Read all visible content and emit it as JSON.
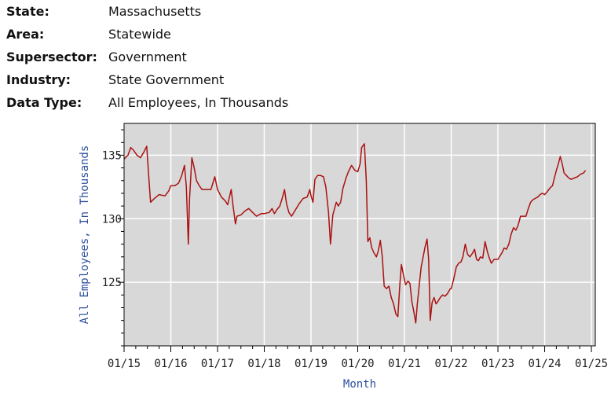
{
  "meta": {
    "state_label": "State:",
    "state": "Massachusetts",
    "area_label": "Area:",
    "area": "Statewide",
    "supersector_label": "Supersector:",
    "supersector": "Government",
    "industry_label": "Industry:",
    "industry": "State Government",
    "datatype_label": "Data Type:",
    "datatype": "All Employees, In Thousands"
  },
  "colors": {
    "plot_bg": "#d8d8d8",
    "grid": "#ffffff",
    "line": "#aa1111",
    "axis_title": "#2e4f9e"
  },
  "chart_data": {
    "type": "line",
    "title": "",
    "xlabel": "Month",
    "ylabel": "All Employees, In Thousands",
    "ylim": [
      120,
      137.5
    ],
    "xlim": [
      0,
      121
    ],
    "yticks": [
      125,
      130,
      135
    ],
    "xticks": [
      0,
      12,
      24,
      36,
      48,
      60,
      72,
      84,
      96,
      108,
      120
    ],
    "xtick_labels": [
      "01/15",
      "01/16",
      "01/17",
      "01/18",
      "01/19",
      "01/20",
      "01/21",
      "01/22",
      "01/23",
      "01/24",
      "01/25"
    ],
    "grid": true,
    "series": [
      {
        "name": "State Government",
        "points": [
          [
            0,
            134.7
          ],
          [
            1,
            135
          ],
          [
            1.7,
            135.6
          ],
          [
            2.4,
            135.4
          ],
          [
            3.3,
            135
          ],
          [
            4.2,
            134.8
          ],
          [
            5,
            135.2
          ],
          [
            5.8,
            135.7
          ],
          [
            6.3,
            133.5
          ],
          [
            6.8,
            131.3
          ],
          [
            7.8,
            131.6
          ],
          [
            9,
            131.9
          ],
          [
            10.5,
            131.8
          ],
          [
            11.5,
            132.2
          ],
          [
            12,
            132.6
          ],
          [
            13,
            132.6
          ],
          [
            14,
            132.8
          ],
          [
            14.8,
            133.4
          ],
          [
            15.5,
            134.2
          ],
          [
            16,
            132.5
          ],
          [
            16.5,
            128
          ],
          [
            16.8,
            131.5
          ],
          [
            17.4,
            134.8
          ],
          [
            18,
            134
          ],
          [
            18.6,
            133
          ],
          [
            19.3,
            132.6
          ],
          [
            20,
            132.3
          ],
          [
            21,
            132.3
          ],
          [
            22.3,
            132.3
          ],
          [
            23.3,
            133.3
          ],
          [
            24,
            132.3
          ],
          [
            25,
            131.7
          ],
          [
            26,
            131.4
          ],
          [
            26.6,
            131.1
          ],
          [
            27.5,
            132.3
          ],
          [
            28,
            131
          ],
          [
            28.6,
            129.6
          ],
          [
            29,
            130.2
          ],
          [
            30,
            130.3
          ],
          [
            31,
            130.6
          ],
          [
            32,
            130.8
          ],
          [
            33,
            130.5
          ],
          [
            34,
            130.2
          ],
          [
            35.2,
            130.4
          ],
          [
            36,
            130.4
          ],
          [
            37.3,
            130.5
          ],
          [
            38,
            130.8
          ],
          [
            38.6,
            130.4
          ],
          [
            39.2,
            130.7
          ],
          [
            40,
            131
          ],
          [
            40.6,
            131.6
          ],
          [
            41.2,
            132.3
          ],
          [
            41.7,
            131.2
          ],
          [
            42.3,
            130.5
          ],
          [
            43,
            130.2
          ],
          [
            44,
            130.7
          ],
          [
            45,
            131.2
          ],
          [
            46,
            131.6
          ],
          [
            47,
            131.7
          ],
          [
            47.7,
            132.3
          ],
          [
            48,
            131.8
          ],
          [
            48.5,
            131.3
          ],
          [
            49,
            133.1
          ],
          [
            49.7,
            133.4
          ],
          [
            50.5,
            133.4
          ],
          [
            51.2,
            133.3
          ],
          [
            51.8,
            132.5
          ],
          [
            52.5,
            130.5
          ],
          [
            53,
            128
          ],
          [
            53.6,
            130.3
          ],
          [
            54.5,
            131.3
          ],
          [
            55,
            131
          ],
          [
            55.6,
            131.3
          ],
          [
            56.2,
            132.4
          ],
          [
            57,
            133.2
          ],
          [
            57.6,
            133.7
          ],
          [
            58.4,
            134.2
          ],
          [
            59.3,
            133.8
          ],
          [
            60,
            133.7
          ],
          [
            60.6,
            134.3
          ],
          [
            61,
            135.6
          ],
          [
            61.7,
            135.9
          ],
          [
            62.2,
            133
          ],
          [
            62.6,
            128.2
          ],
          [
            63.1,
            128.5
          ],
          [
            63.6,
            127.7
          ],
          [
            64.2,
            127.3
          ],
          [
            64.8,
            127
          ],
          [
            65.3,
            127.5
          ],
          [
            65.8,
            128.3
          ],
          [
            66.3,
            127
          ],
          [
            66.8,
            124.7
          ],
          [
            67.4,
            124.5
          ],
          [
            68,
            124.7
          ],
          [
            68.6,
            123.8
          ],
          [
            69.2,
            123.3
          ],
          [
            69.8,
            122.5
          ],
          [
            70.3,
            122.3
          ],
          [
            70.8,
            124.8
          ],
          [
            71.2,
            126.4
          ],
          [
            71.8,
            125.5
          ],
          [
            72.3,
            124.8
          ],
          [
            72.9,
            125.1
          ],
          [
            73.4,
            124.9
          ],
          [
            73.9,
            123.5
          ],
          [
            74.4,
            122.7
          ],
          [
            74.9,
            121.8
          ],
          [
            75.3,
            123.3
          ],
          [
            75.8,
            124.8
          ],
          [
            76.3,
            126.2
          ],
          [
            76.8,
            127
          ],
          [
            77.3,
            127.8
          ],
          [
            77.8,
            128.4
          ],
          [
            78.2,
            126.8
          ],
          [
            78.6,
            122
          ],
          [
            79.1,
            123.4
          ],
          [
            79.6,
            123.8
          ],
          [
            80.1,
            123.3
          ],
          [
            80.6,
            123.5
          ],
          [
            81.2,
            123.8
          ],
          [
            81.8,
            124
          ],
          [
            82.4,
            123.9
          ],
          [
            83,
            124.1
          ],
          [
            83.8,
            124.5
          ],
          [
            84,
            124.5
          ],
          [
            84.6,
            125.2
          ],
          [
            85.3,
            126.2
          ],
          [
            85.9,
            126.5
          ],
          [
            86.5,
            126.6
          ],
          [
            87,
            127
          ],
          [
            87.6,
            128
          ],
          [
            88.2,
            127.2
          ],
          [
            88.8,
            127
          ],
          [
            89.5,
            127.3
          ],
          [
            90,
            127.6
          ],
          [
            90.5,
            126.8
          ],
          [
            91,
            126.7
          ],
          [
            91.5,
            127
          ],
          [
            92.1,
            126.9
          ],
          [
            92.7,
            128.2
          ],
          [
            93.3,
            127.4
          ],
          [
            93.8,
            126.9
          ],
          [
            94.3,
            126.5
          ],
          [
            95,
            126.8
          ],
          [
            96,
            126.8
          ],
          [
            97,
            127.3
          ],
          [
            97.6,
            127.7
          ],
          [
            98.2,
            127.6
          ],
          [
            98.8,
            128
          ],
          [
            99.4,
            128.8
          ],
          [
            100,
            129.3
          ],
          [
            100.6,
            129.1
          ],
          [
            101.2,
            129.5
          ],
          [
            101.8,
            130.2
          ],
          [
            102.5,
            130.2
          ],
          [
            103.2,
            130.2
          ],
          [
            103.8,
            130.8
          ],
          [
            104.4,
            131.3
          ],
          [
            105,
            131.5
          ],
          [
            105.6,
            131.6
          ],
          [
            106.2,
            131.7
          ],
          [
            106.8,
            131.9
          ],
          [
            107.4,
            132
          ],
          [
            108,
            131.9
          ],
          [
            108.6,
            132.1
          ],
          [
            109.3,
            132.4
          ],
          [
            110,
            132.6
          ],
          [
            110.5,
            133.2
          ],
          [
            111,
            133.8
          ],
          [
            111.5,
            134.3
          ],
          [
            112,
            134.9
          ],
          [
            112.5,
            134.3
          ],
          [
            113,
            133.6
          ],
          [
            113.6,
            133.4
          ],
          [
            114.2,
            133.2
          ],
          [
            114.8,
            133.1
          ],
          [
            115.6,
            133.2
          ],
          [
            116.4,
            133.3
          ],
          [
            117.2,
            133.5
          ],
          [
            118,
            133.6
          ],
          [
            118.5,
            133.8
          ]
        ]
      }
    ]
  }
}
